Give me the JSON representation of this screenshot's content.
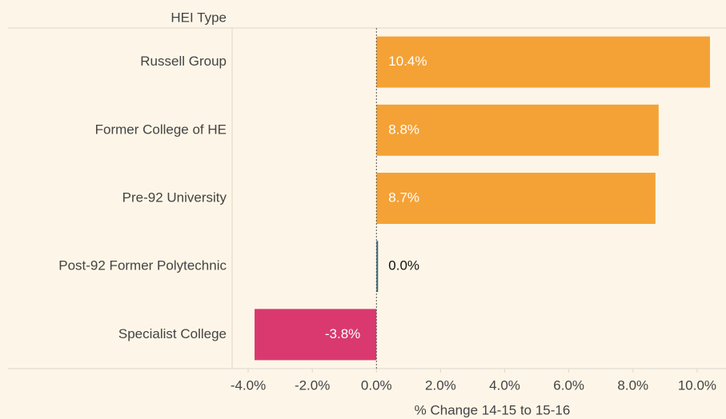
{
  "chart_data": {
    "type": "bar",
    "orientation": "horizontal",
    "y_axis_header": "HEI Type",
    "xlabel": "% Change 14-15 to 15-16",
    "categories": [
      "Russell Group",
      "Former College of HE",
      "Pre-92 University",
      "Post-92 Former Polytechnic",
      "Specialist College"
    ],
    "values": [
      10.4,
      8.8,
      8.7,
      0.0,
      -3.8
    ],
    "value_labels": [
      "10.4%",
      "8.8%",
      "8.7%",
      "0.0%",
      "-3.8%"
    ],
    "colors": [
      "#f4a236",
      "#f4a236",
      "#f4a236",
      "#2e6b80",
      "#d9396f"
    ],
    "xlim": [
      -4.5,
      10.9
    ],
    "xticks": [
      {
        "value": -4,
        "label": "-4.0%"
      },
      {
        "value": -2,
        "label": "-2.0%"
      },
      {
        "value": 0,
        "label": "0.0%"
      },
      {
        "value": 2,
        "label": "2.0%"
      },
      {
        "value": 4,
        "label": "4.0%"
      },
      {
        "value": 6,
        "label": "6.0%"
      },
      {
        "value": 8,
        "label": "8.0%"
      },
      {
        "value": 10,
        "label": "10.0%"
      }
    ]
  }
}
